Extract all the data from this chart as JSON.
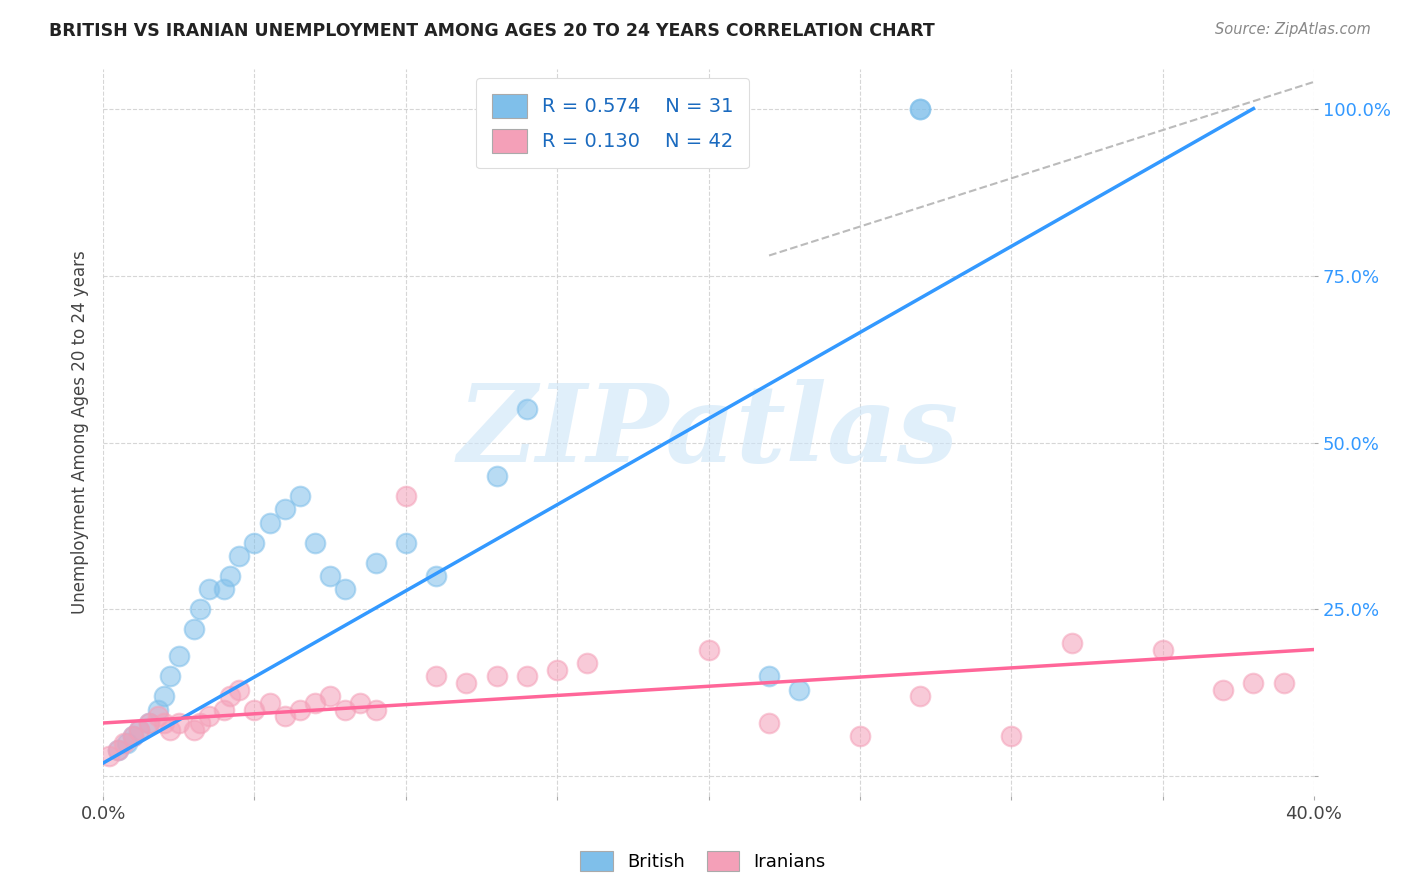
{
  "title": "BRITISH VS IRANIAN UNEMPLOYMENT AMONG AGES 20 TO 24 YEARS CORRELATION CHART",
  "source": "Source: ZipAtlas.com",
  "ylabel": "Unemployment Among Ages 20 to 24 years",
  "xlim": [
    0.0,
    0.4
  ],
  "ylim": [
    -0.03,
    1.06
  ],
  "legend_british": "British",
  "legend_iranians": "Iranians",
  "british_R": 0.574,
  "british_N": 31,
  "iranian_R": 0.13,
  "iranian_N": 42,
  "british_color": "#7fbfea",
  "iranian_color": "#f4a0b8",
  "british_line_color": "#3399ff",
  "iranian_line_color": "#ff6699",
  "background_color": "#ffffff",
  "watermark": "ZIPatlas",
  "british_scatter_x": [
    0.005,
    0.008,
    0.01,
    0.012,
    0.015,
    0.018,
    0.02,
    0.022,
    0.025,
    0.03,
    0.032,
    0.035,
    0.04,
    0.042,
    0.045,
    0.05,
    0.055,
    0.06,
    0.065,
    0.07,
    0.075,
    0.08,
    0.09,
    0.1,
    0.11,
    0.13,
    0.14,
    0.22,
    0.23,
    0.27,
    0.27
  ],
  "british_scatter_y": [
    0.04,
    0.05,
    0.06,
    0.07,
    0.08,
    0.1,
    0.12,
    0.15,
    0.18,
    0.22,
    0.25,
    0.28,
    0.28,
    0.3,
    0.33,
    0.35,
    0.38,
    0.4,
    0.42,
    0.35,
    0.3,
    0.28,
    0.32,
    0.35,
    0.3,
    0.45,
    0.55,
    0.15,
    0.13,
    1.0,
    1.0
  ],
  "british_line_x": [
    0.0,
    0.38
  ],
  "british_line_y": [
    0.02,
    1.0
  ],
  "iranian_scatter_x": [
    0.002,
    0.005,
    0.007,
    0.01,
    0.012,
    0.015,
    0.018,
    0.02,
    0.022,
    0.025,
    0.03,
    0.032,
    0.035,
    0.04,
    0.042,
    0.045,
    0.05,
    0.055,
    0.06,
    0.065,
    0.07,
    0.075,
    0.08,
    0.085,
    0.09,
    0.1,
    0.11,
    0.12,
    0.13,
    0.14,
    0.15,
    0.16,
    0.2,
    0.22,
    0.25,
    0.27,
    0.3,
    0.32,
    0.35,
    0.37,
    0.38,
    0.39
  ],
  "iranian_scatter_y": [
    0.03,
    0.04,
    0.05,
    0.06,
    0.07,
    0.08,
    0.09,
    0.08,
    0.07,
    0.08,
    0.07,
    0.08,
    0.09,
    0.1,
    0.12,
    0.13,
    0.1,
    0.11,
    0.09,
    0.1,
    0.11,
    0.12,
    0.1,
    0.11,
    0.1,
    0.42,
    0.15,
    0.14,
    0.15,
    0.15,
    0.16,
    0.17,
    0.19,
    0.08,
    0.06,
    0.12,
    0.06,
    0.2,
    0.19,
    0.13,
    0.14,
    0.14
  ],
  "iranian_line_x": [
    0.0,
    0.4
  ],
  "iranian_line_y": [
    0.08,
    0.19
  ],
  "diag_line_x": [
    0.22,
    0.4
  ],
  "diag_line_y": [
    0.78,
    1.04
  ]
}
